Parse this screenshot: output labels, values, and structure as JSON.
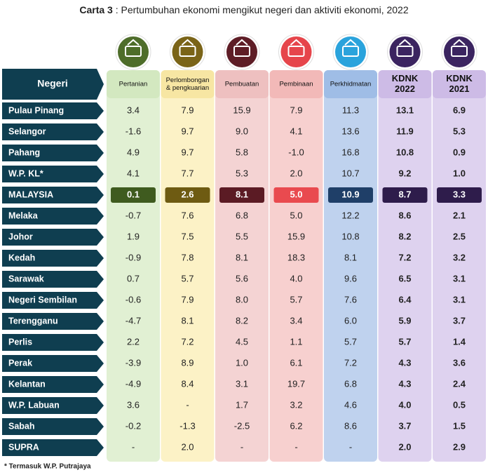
{
  "title": {
    "label": "Carta 3",
    "text": " : Pertumbuhan ekonomi mengikut negeri dan aktiviti ekonomi, 2022"
  },
  "row_header": "Negeri",
  "columns": [
    {
      "lines": [
        "Pertanian"
      ],
      "bg": "#e1f0d3",
      "head": "#d3e8c0",
      "hi": "#3f5b1f",
      "icon": "#4e6d2a",
      "bold": false
    },
    {
      "lines": [
        "Perlombongan",
        "& pengkuarian"
      ],
      "bg": "#fcf2c6",
      "head": "#f7e6a3",
      "hi": "#6e5b12",
      "icon": "#7a6418",
      "bold": false
    },
    {
      "lines": [
        "Pembuatan"
      ],
      "bg": "#f4d3d3",
      "head": "#eec0c0",
      "hi": "#5b1b24",
      "icon": "#5e1d26",
      "bold": false
    },
    {
      "lines": [
        "Pembinaan"
      ],
      "bg": "#f7d0cf",
      "head": "#f2b9b8",
      "hi": "#e94a4f",
      "icon": "#e6454b",
      "bold": false
    },
    {
      "lines": [
        "Perkhidmatan"
      ],
      "bg": "#bfd2ee",
      "head": "#9fbde6",
      "hi": "#1f3f68",
      "icon": "#2aa3dc",
      "bold": false
    },
    {
      "lines": [
        "KDNK",
        "2022"
      ],
      "bg": "#ded2ef",
      "head": "#cdbbe6",
      "hi": "#2e1c4b",
      "icon": "#3b2460",
      "bold": true
    },
    {
      "lines": [
        "KDNK",
        "2021"
      ],
      "bg": "#ded2ef",
      "head": "#cdbbe6",
      "hi": "#2e1c4b",
      "icon": "#3b2460",
      "bold": true
    }
  ],
  "highlight_row": 4,
  "rows": [
    {
      "name": "Pulau Pinang",
      "values": [
        "3.4",
        "7.9",
        "15.9",
        "7.9",
        "11.3",
        "13.1",
        "6.9"
      ]
    },
    {
      "name": "Selangor",
      "values": [
        "-1.6",
        "9.7",
        "9.0",
        "4.1",
        "13.6",
        "11.9",
        "5.3"
      ]
    },
    {
      "name": "Pahang",
      "values": [
        "4.9",
        "9.7",
        "5.8",
        "-1.0",
        "16.8",
        "10.8",
        "0.9"
      ]
    },
    {
      "name": "W.P. KL*",
      "values": [
        "4.1",
        "7.7",
        "5.3",
        "2.0",
        "10.7",
        "9.2",
        "1.0"
      ]
    },
    {
      "name": "MALAYSIA",
      "values": [
        "0.1",
        "2.6",
        "8.1",
        "5.0",
        "10.9",
        "8.7",
        "3.3"
      ]
    },
    {
      "name": "Melaka",
      "values": [
        "-0.7",
        "7.6",
        "6.8",
        "5.0",
        "12.2",
        "8.6",
        "2.1"
      ]
    },
    {
      "name": "Johor",
      "values": [
        "1.9",
        "7.5",
        "5.5",
        "15.9",
        "10.8",
        "8.2",
        "2.5"
      ]
    },
    {
      "name": "Kedah",
      "values": [
        "-0.9",
        "7.8",
        "8.1",
        "18.3",
        "8.1",
        "7.2",
        "3.2"
      ]
    },
    {
      "name": "Sarawak",
      "values": [
        "0.7",
        "5.7",
        "5.6",
        "4.0",
        "9.6",
        "6.5",
        "3.1"
      ]
    },
    {
      "name": "Negeri  Sembilan",
      "values": [
        "-0.6",
        "7.9",
        "8.0",
        "5.7",
        "7.6",
        "6.4",
        "3.1"
      ]
    },
    {
      "name": "Terengganu",
      "values": [
        "-4.7",
        "8.1",
        "8.2",
        "3.4",
        "6.0",
        "5.9",
        "3.7"
      ]
    },
    {
      "name": "Perlis",
      "values": [
        "2.2",
        "7.2",
        "4.5",
        "1.1",
        "5.7",
        "5.7",
        "1.4"
      ]
    },
    {
      "name": "Perak",
      "values": [
        "-3.9",
        "8.9",
        "1.0",
        "6.1",
        "7.2",
        "4.3",
        "3.6"
      ]
    },
    {
      "name": "Kelantan",
      "values": [
        "-4.9",
        "8.4",
        "3.1",
        "19.7",
        "6.8",
        "4.3",
        "2.4"
      ]
    },
    {
      "name": "W.P. Labuan",
      "values": [
        "3.6",
        "-",
        "1.7",
        "3.2",
        "4.6",
        "4.0",
        "0.5"
      ]
    },
    {
      "name": "Sabah",
      "values": [
        "-0.2",
        "-1.3",
        "-2.5",
        "6.2",
        "8.6",
        "3.7",
        "1.5"
      ]
    },
    {
      "name": "SUPRA",
      "values": [
        "-",
        "2.0",
        "-",
        "-",
        "-",
        "2.0",
        "2.9"
      ]
    }
  ],
  "footnote": "* Termasuk W.P. Putrajaya"
}
